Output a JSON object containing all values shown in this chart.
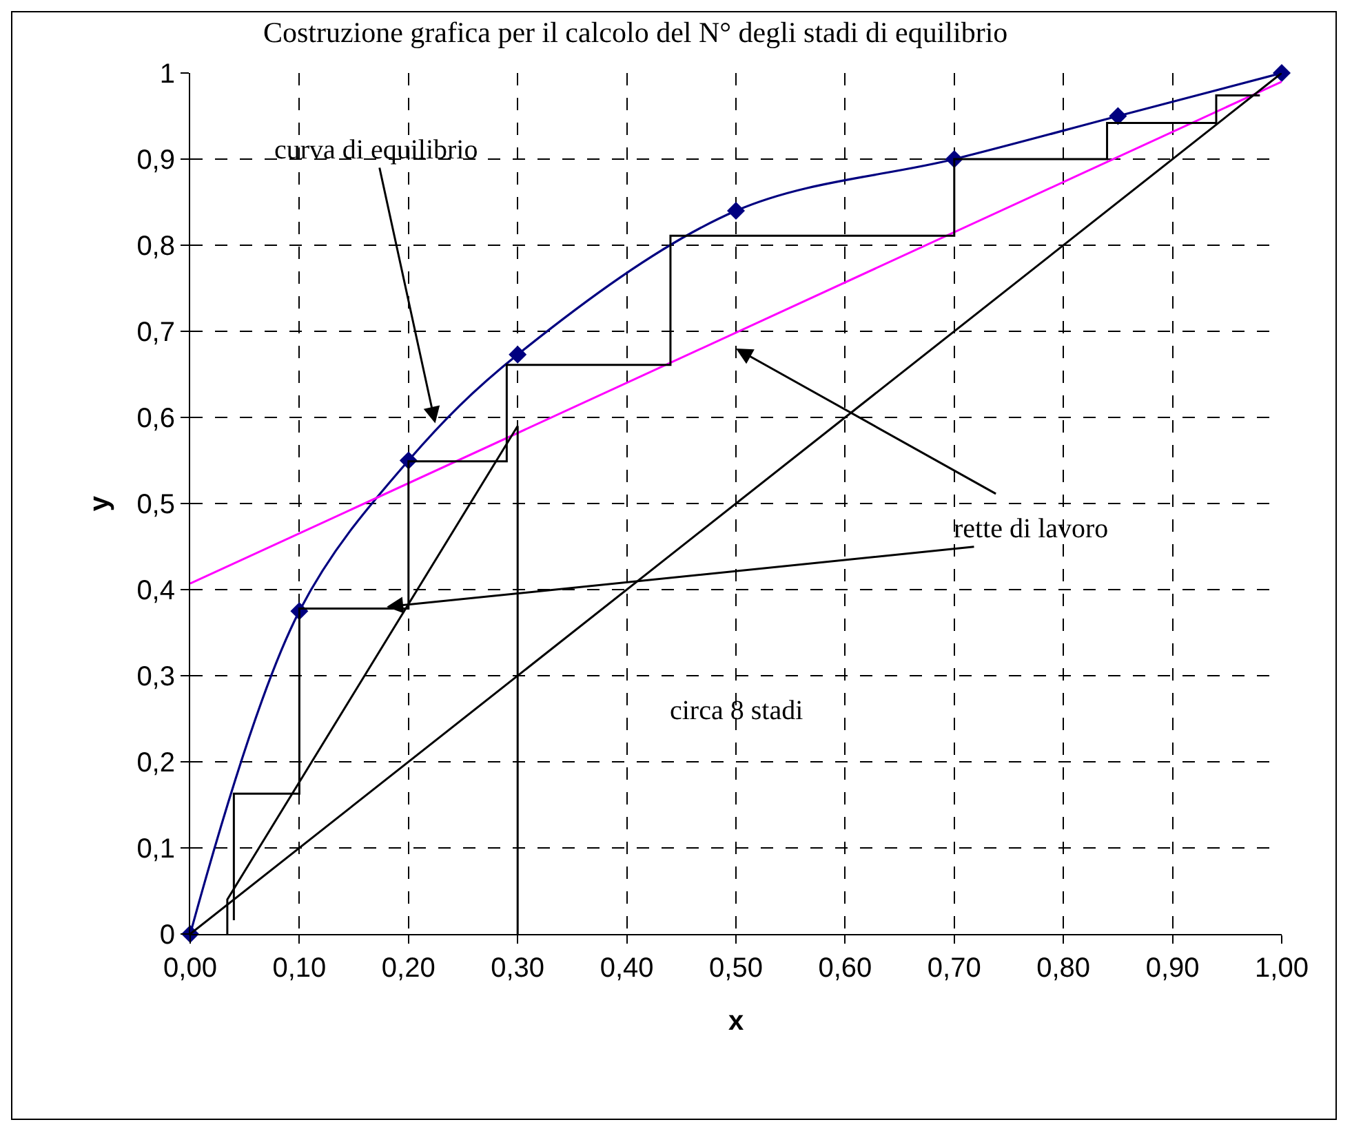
{
  "chart_data": {
    "type": "line",
    "title": "Costruzione grafica per il calcolo del N° degli stadi di equilibrio",
    "xlabel": "x",
    "ylabel": "y",
    "xlim": [
      0,
      1
    ],
    "ylim": [
      0,
      1
    ],
    "xticks": [
      {
        "value": 0,
        "label": "0,00"
      },
      {
        "value": 0.1,
        "label": "0,10"
      },
      {
        "value": 0.2,
        "label": "0,20"
      },
      {
        "value": 0.3,
        "label": "0,30"
      },
      {
        "value": 0.4,
        "label": "0,40"
      },
      {
        "value": 0.5,
        "label": "0,50"
      },
      {
        "value": 0.6,
        "label": "0,60"
      },
      {
        "value": 0.7,
        "label": "0,70"
      },
      {
        "value": 0.8,
        "label": "0,80"
      },
      {
        "value": 0.9,
        "label": "0,90"
      },
      {
        "value": 1,
        "label": "1,00"
      }
    ],
    "yticks": [
      0,
      {
        "value": 0.1,
        "label": "0,1"
      },
      {
        "value": 0.2,
        "label": "0,2"
      },
      {
        "value": 0.3,
        "label": "0,3"
      },
      {
        "value": 0.4,
        "label": "0,4"
      },
      {
        "value": 0.5,
        "label": "0,5"
      },
      {
        "value": 0.6,
        "label": "0,6"
      },
      {
        "value": 0.7,
        "label": "0,7"
      },
      {
        "value": 0.8,
        "label": "0,8"
      },
      {
        "value": 0.9,
        "label": "0,9"
      },
      1
    ],
    "grid": true,
    "line_style": "solid",
    "series": [
      {
        "color": "#000080",
        "marker": "diamond",
        "x": [
          0,
          0.1,
          0.2,
          0.3,
          0.5,
          0.7,
          0.85,
          1
        ],
        "values": [
          0,
          0.375,
          0.55,
          0.673,
          0.84,
          0.9,
          0.95,
          1
        ]
      },
      {
        "color": "#ff00ff",
        "marker": "none",
        "x": [
          0,
          1
        ],
        "values": [
          0.407,
          0.99
        ]
      },
      {
        "color": "#000000",
        "marker": "none",
        "x": [
          0,
          1
        ],
        "values": [
          0,
          1
        ]
      },
      {
        "color": "#000000",
        "marker": "none",
        "x": [
          0.034,
          0.034,
          0.3,
          0.3
        ],
        "values": [
          0,
          0.04,
          0.59,
          0
        ]
      },
      {
        "color": "#000000",
        "marker": "none",
        "x": [
          0.98,
          0.94,
          0.94,
          0.84,
          0.84,
          0.7,
          0.7,
          0.44,
          0.44,
          0.29,
          0.29,
          0.2,
          0.2,
          0.1,
          0.1,
          0.04,
          0.04
        ],
        "values": [
          0.974,
          0.974,
          0.942,
          0.942,
          0.9,
          0.9,
          0.811,
          0.811,
          0.661,
          0.661,
          0.549,
          0.549,
          0.378,
          0.378,
          0.163,
          0.163,
          0.016
        ]
      }
    ],
    "annotations": [
      {
        "text": "curva di equilibrio",
        "x": 0.225,
        "y": 0.59
      },
      "rette di lavoro",
      "circa 8 stadi"
    ]
  }
}
